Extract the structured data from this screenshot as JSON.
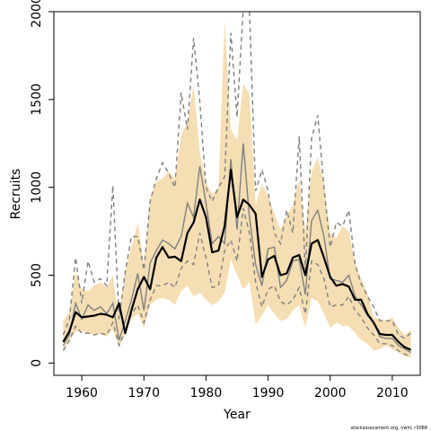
{
  "chart_data": {
    "type": "line",
    "xlabel": "Year",
    "ylabel": "Recruits",
    "xlim": [
      1955.5,
      2014.5
    ],
    "ylim": [
      -70,
      2000
    ],
    "x_ticks": [
      1960,
      1970,
      1980,
      1990,
      2000,
      2010
    ],
    "y_ticks": [
      0,
      500,
      1000,
      1500,
      2000
    ],
    "x_tick_labels": [
      "1960",
      "1970",
      "1980",
      "1990",
      "2000",
      "2010"
    ],
    "y_tick_labels": [
      "0",
      "500",
      "1000",
      "1500",
      "2000"
    ],
    "grid": false,
    "footer": "stockassessment.org, nwhl, r3088",
    "colors": {
      "band": "#f5deb3",
      "main_line": "#000000",
      "alt_line": "#808080"
    },
    "x": [
      1957,
      1958,
      1959,
      1960,
      1961,
      1962,
      1963,
      1964,
      1965,
      1966,
      1967,
      1968,
      1969,
      1970,
      1971,
      1972,
      1973,
      1974,
      1975,
      1976,
      1977,
      1978,
      1979,
      1980,
      1981,
      1982,
      1983,
      1984,
      1985,
      1986,
      1987,
      1988,
      1989,
      1990,
      1991,
      1992,
      1993,
      1994,
      1995,
      1996,
      1997,
      1998,
      1999,
      2000,
      2001,
      2002,
      2003,
      2004,
      2005,
      2006,
      2007,
      2008,
      2009,
      2010,
      2011,
      2012,
      2013
    ],
    "series": [
      {
        "role": "band",
        "lower": [
          80,
          120,
          180,
          180,
          170,
          160,
          165,
          150,
          190,
          90,
          165,
          250,
          280,
          200,
          330,
          360,
          370,
          360,
          330,
          410,
          440,
          380,
          400,
          360,
          330,
          350,
          400,
          590,
          500,
          420,
          460,
          220,
          270,
          330,
          280,
          240,
          250,
          300,
          330,
          200,
          370,
          350,
          280,
          200,
          230,
          210,
          210,
          170,
          130,
          110,
          70,
          80,
          100,
          80,
          60,
          40,
          30
        ],
        "upper": [
          240,
          290,
          520,
          420,
          410,
          440,
          460,
          430,
          500,
          250,
          530,
          660,
          800,
          560,
          930,
          1030,
          1050,
          1090,
          1050,
          1300,
          1370,
          1580,
          1200,
          1030,
          960,
          1000,
          1950,
          1330,
          1270,
          1590,
          1530,
          900,
          1020,
          950,
          850,
          760,
          840,
          900,
          1050,
          750,
          1090,
          1170,
          1030,
          740,
          710,
          780,
          750,
          570,
          480,
          400,
          260,
          250,
          240,
          260,
          200,
          160,
          190
        ]
      },
      {
        "role": "main",
        "values": [
          120,
          180,
          290,
          260,
          265,
          270,
          280,
          275,
          260,
          340,
          170,
          300,
          420,
          490,
          420,
          600,
          660,
          600,
          605,
          580,
          740,
          800,
          930,
          830,
          630,
          640,
          780,
          1100,
          830,
          930,
          900,
          850,
          490,
          590,
          610,
          500,
          510,
          600,
          615,
          500,
          680,
          700,
          600,
          490,
          440,
          450,
          435,
          360,
          360,
          280,
          230,
          165,
          160,
          160,
          120,
          90,
          75
        ]
      },
      {
        "role": "alt-1",
        "values": [
          100,
          160,
          340,
          250,
          330,
          300,
          320,
          280,
          340,
          130,
          240,
          360,
          510,
          300,
          570,
          640,
          700,
          680,
          650,
          720,
          910,
          830,
          1120,
          910,
          680,
          720,
          680,
          1160,
          760,
          1250,
          830,
          560,
          440,
          650,
          660,
          430,
          470,
          580,
          590,
          390,
          810,
          870,
          720,
          480,
          470,
          460,
          500,
          380,
          330,
          270,
          230,
          150,
          140,
          140,
          100,
          80,
          60
        ]
      },
      {
        "role": "alt-2",
        "values": [
          70,
          130,
          210,
          170,
          170,
          160,
          170,
          160,
          230,
          100,
          180,
          280,
          330,
          230,
          360,
          440,
          440,
          460,
          430,
          540,
          580,
          560,
          740,
          600,
          430,
          440,
          640,
          700,
          580,
          880,
          740,
          460,
          320,
          420,
          440,
          350,
          330,
          360,
          430,
          280,
          580,
          560,
          480,
          320,
          330,
          330,
          380,
          300,
          260,
          200,
          160,
          110,
          110,
          100,
          70,
          50,
          40
        ]
      },
      {
        "role": "alt-3",
        "values": [
          160,
          250,
          600,
          340,
          580,
          460,
          480,
          440,
          1010,
          250,
          520,
          720,
          720,
          530,
          920,
          1050,
          1140,
          1080,
          1000,
          1540,
          1330,
          1850,
          1490,
          1000,
          920,
          1000,
          1060,
          1880,
          1400,
          2020,
          2000,
          980,
          1100,
          980,
          740,
          680,
          870,
          740,
          1290,
          530,
          1280,
          1410,
          1000,
          660,
          800,
          780,
          870,
          560,
          450,
          380,
          320,
          240,
          240,
          240,
          160,
          140,
          170
        ]
      }
    ]
  }
}
